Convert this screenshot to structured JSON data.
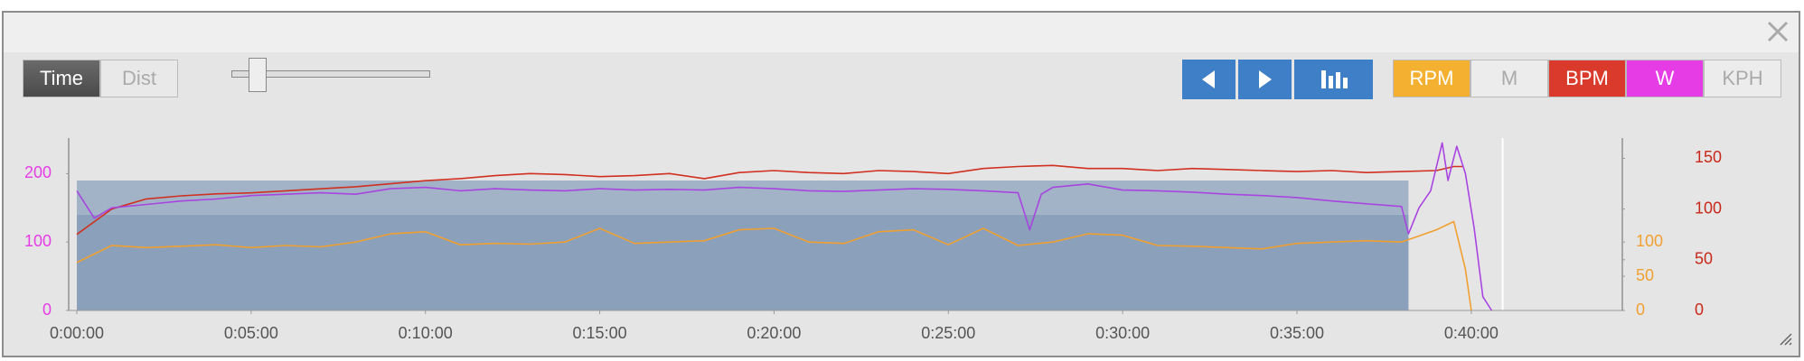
{
  "toolbar": {
    "modes": [
      {
        "label": "Time",
        "active": true
      },
      {
        "label": "Dist",
        "active": false
      }
    ],
    "channels": [
      {
        "label": "RPM",
        "color": "#f4b030",
        "active": true
      },
      {
        "label": "M",
        "color": "#ececec",
        "active": false
      },
      {
        "label": "BPM",
        "color": "#d93a2b",
        "active": true
      },
      {
        "label": "W",
        "color": "#e63ce6",
        "active": true
      },
      {
        "label": "KPH",
        "color": "#ececec",
        "active": false
      }
    ]
  },
  "chart_data": {
    "type": "line",
    "xlim": [
      -14,
      2660
    ],
    "xticks": [
      {
        "value": 0,
        "label": "0:00:00"
      },
      {
        "value": 300,
        "label": "0:05:00"
      },
      {
        "value": 600,
        "label": "0:10:00"
      },
      {
        "value": 900,
        "label": "0:15:00"
      },
      {
        "value": 1200,
        "label": "0:20:00"
      },
      {
        "value": 1500,
        "label": "0:25:00"
      },
      {
        "value": 1800,
        "label": "0:30:00"
      },
      {
        "value": 2100,
        "label": "0:35:00"
      },
      {
        "value": 2400,
        "label": "0:40:00"
      }
    ],
    "ylim": [
      0,
      252
    ],
    "yticks": [
      0,
      100,
      200
    ],
    "y2lim": [
      0,
      252
    ],
    "y2ticks": [
      0,
      50,
      100
    ],
    "y3lim": [
      0,
      170
    ],
    "y3ticks": [
      0,
      50,
      100,
      150
    ],
    "axis_colors": {
      "y": "#e63ce6",
      "y2": "#f0a030",
      "y3": "#c8281a"
    },
    "zones": [
      {
        "start": 0,
        "end": 2292,
        "low": 0,
        "high": 140,
        "color": "#8aa0bb"
      },
      {
        "start": 0,
        "end": 2292,
        "low": 140,
        "high": 190,
        "color": "#a2b3c7"
      }
    ],
    "cursor_x": 2454,
    "series": [
      {
        "name": "RPM",
        "axis": "y2",
        "color": "#f0a030",
        "x": [
          0,
          60,
          120,
          180,
          240,
          300,
          360,
          420,
          480,
          540,
          600,
          660,
          720,
          780,
          840,
          900,
          960,
          1020,
          1080,
          1140,
          1200,
          1260,
          1320,
          1380,
          1440,
          1500,
          1560,
          1620,
          1680,
          1740,
          1800,
          1860,
          1920,
          1980,
          2040,
          2100,
          2160,
          2220,
          2280,
          2340,
          2370,
          2390,
          2400
        ],
        "values": [
          70,
          95,
          92,
          94,
          96,
          92,
          95,
          93,
          100,
          112,
          115,
          96,
          98,
          97,
          100,
          120,
          98,
          100,
          102,
          118,
          120,
          100,
          98,
          115,
          118,
          96,
          120,
          95,
          100,
          112,
          110,
          95,
          94,
          92,
          90,
          98,
          100,
          102,
          100,
          118,
          130,
          60,
          0
        ]
      },
      {
        "name": "BPM",
        "axis": "y3",
        "color": "#d0301f",
        "x": [
          0,
          60,
          120,
          180,
          240,
          300,
          360,
          420,
          480,
          540,
          600,
          660,
          720,
          780,
          840,
          900,
          960,
          1020,
          1080,
          1140,
          1200,
          1260,
          1320,
          1380,
          1440,
          1500,
          1560,
          1620,
          1680,
          1740,
          1800,
          1860,
          1920,
          1980,
          2040,
          2100,
          2160,
          2220,
          2280,
          2340,
          2370,
          2385
        ],
        "values": [
          75,
          100,
          110,
          113,
          115,
          116,
          118,
          120,
          122,
          125,
          128,
          130,
          133,
          135,
          134,
          132,
          133,
          135,
          130,
          136,
          138,
          136,
          135,
          138,
          137,
          135,
          140,
          142,
          143,
          140,
          140,
          138,
          140,
          139,
          138,
          137,
          138,
          136,
          137,
          138,
          142,
          142
        ]
      },
      {
        "name": "W",
        "axis": "y",
        "color": "#a845e0",
        "x": [
          0,
          30,
          60,
          120,
          180,
          240,
          300,
          360,
          420,
          480,
          540,
          600,
          660,
          720,
          780,
          840,
          900,
          960,
          1020,
          1080,
          1140,
          1200,
          1260,
          1320,
          1380,
          1440,
          1500,
          1560,
          1620,
          1640,
          1660,
          1680,
          1740,
          1800,
          1860,
          1920,
          1980,
          2040,
          2100,
          2160,
          2220,
          2280,
          2292,
          2310,
          2330,
          2350,
          2360,
          2375,
          2390,
          2405,
          2420,
          2435
        ],
        "values": [
          175,
          135,
          150,
          155,
          160,
          163,
          168,
          170,
          172,
          170,
          178,
          180,
          175,
          178,
          176,
          175,
          178,
          176,
          177,
          176,
          180,
          178,
          175,
          174,
          176,
          178,
          177,
          175,
          172,
          118,
          170,
          180,
          185,
          176,
          175,
          173,
          170,
          168,
          165,
          160,
          156,
          152,
          112,
          150,
          175,
          245,
          190,
          240,
          200,
          120,
          20,
          0
        ]
      }
    ]
  }
}
